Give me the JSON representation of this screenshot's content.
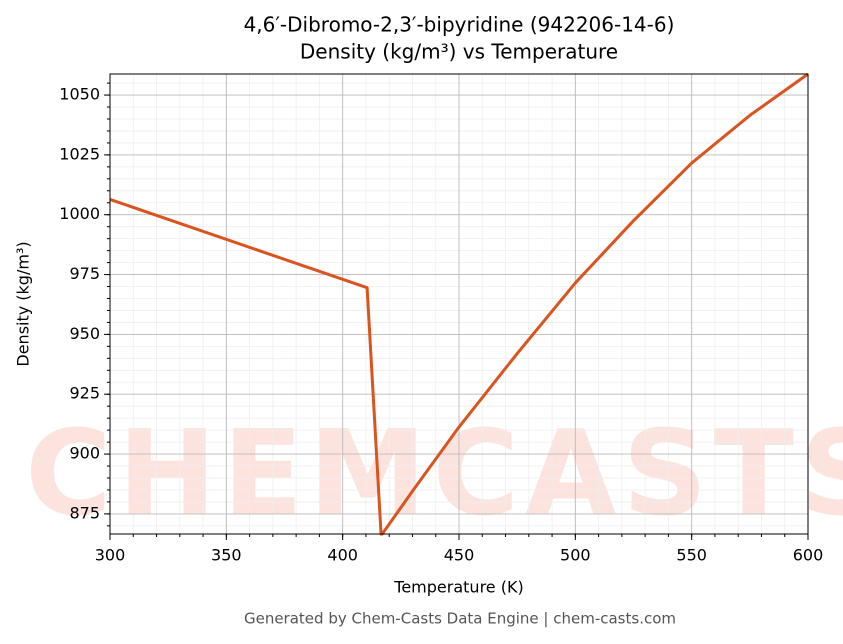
{
  "chart_data": {
    "type": "line",
    "title": "4,6′-Dibromo-2,3′-bipyridine (942206-14-6)",
    "subtitle": "Density (kg/m³) vs Temperature",
    "x_label": "Temperature (K)",
    "y_label": "Density (kg/m³)",
    "footer": "Generated by Chem-Casts Data Engine | chem-casts.com",
    "watermark": "CHEMCASTS",
    "series": [
      {
        "name": "Density",
        "color": "#d9541e",
        "x": [
          300,
          410.5,
          416.5,
          417,
          430,
          450,
          475,
          500,
          525,
          550,
          575,
          600
        ],
        "values": [
          1006.4,
          969.5,
          866.6,
          866.6,
          884.5,
          911.3,
          942,
          971.5,
          997.5,
          1021.6,
          1041.5,
          1058.8
        ]
      }
    ],
    "xlim": [
      300,
      600
    ],
    "xticks": [
      300,
      350,
      400,
      450,
      500,
      550,
      600
    ],
    "ylim": [
      866.6,
      1058.8
    ],
    "yticks": [
      875,
      900,
      925,
      950,
      975,
      1000,
      1025,
      1050
    ],
    "grid": true
  }
}
